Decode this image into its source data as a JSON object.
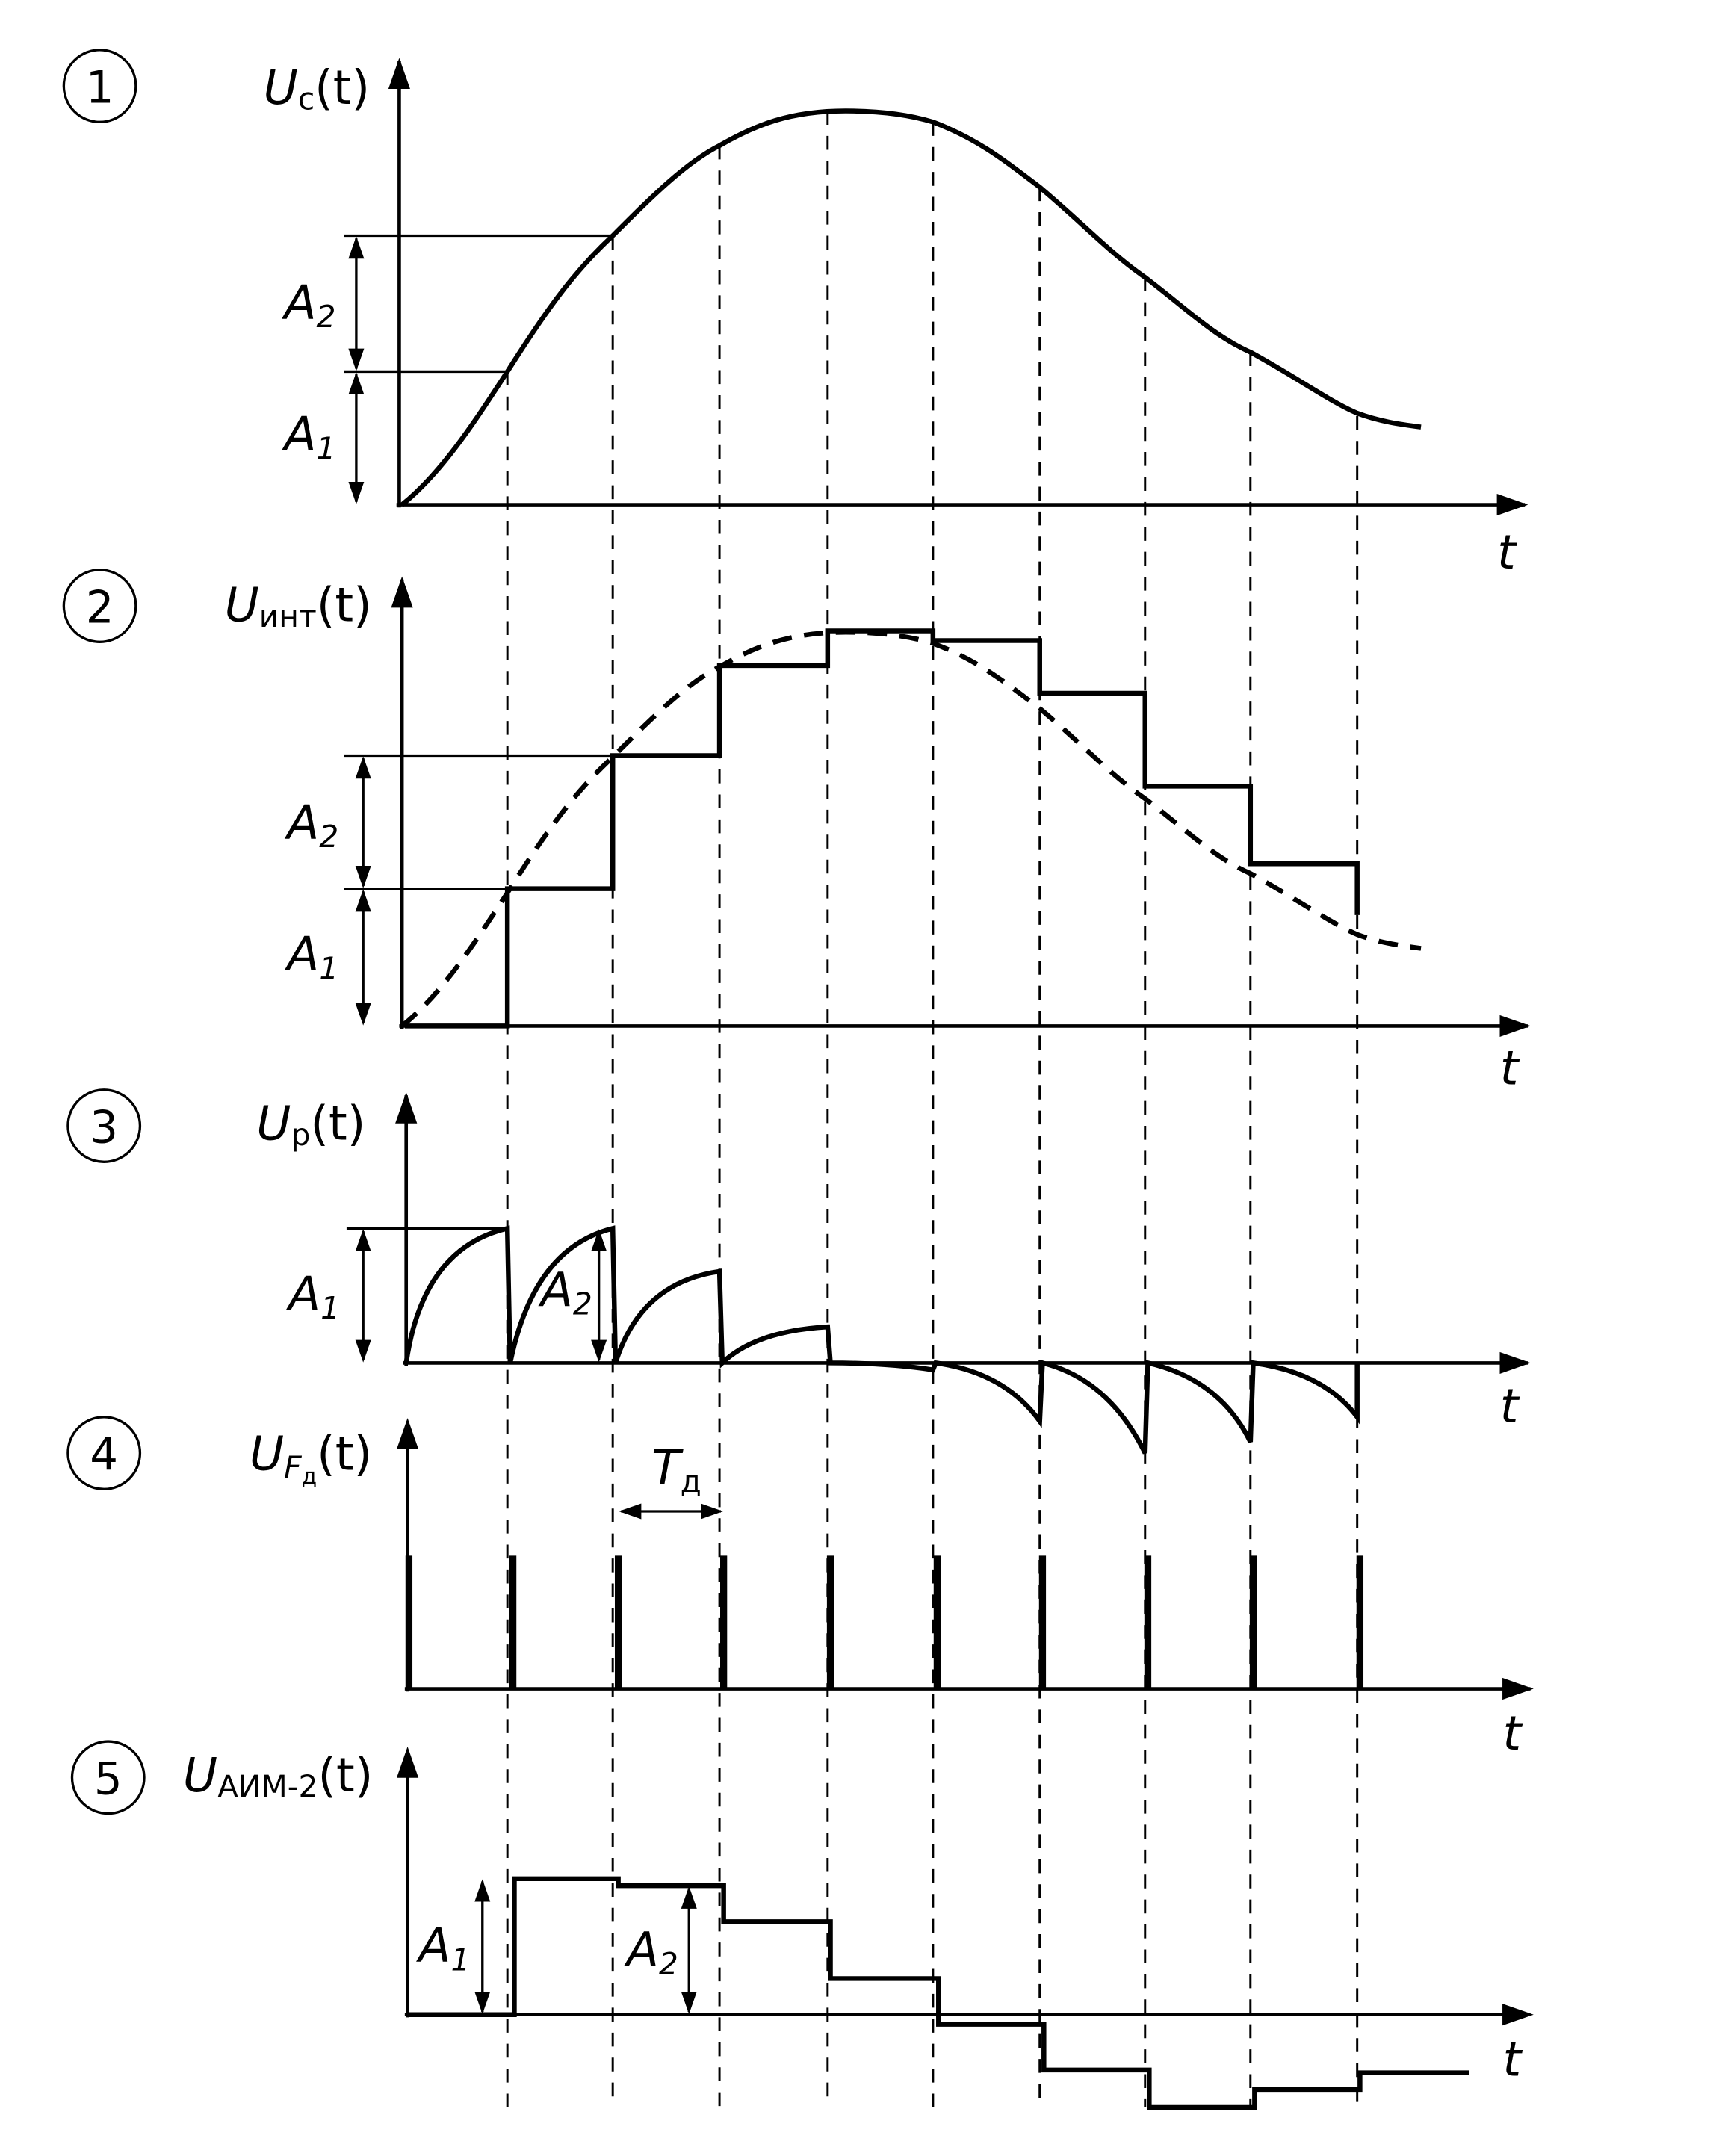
{
  "panels": [
    {
      "number": "1",
      "ylabel": {
        "main": "U",
        "sub": "c",
        "arg": "(t)"
      },
      "xlabel": "t",
      "levels": [
        {
          "main": "A",
          "sub": "2"
        },
        {
          "main": "A",
          "sub": "1"
        }
      ]
    },
    {
      "number": "2",
      "ylabel": {
        "main": "U",
        "sub": "инт",
        "arg": "(t)"
      },
      "xlabel": "t",
      "levels": [
        {
          "main": "A",
          "sub": "2"
        },
        {
          "main": "A",
          "sub": "1"
        }
      ]
    },
    {
      "number": "3",
      "ylabel": {
        "main": "U",
        "sub": "р",
        "arg": "(t)"
      },
      "xlabel": "t",
      "levels": [
        {
          "main": "A",
          "sub": "1"
        },
        {
          "main": "A",
          "sub": "2"
        }
      ]
    },
    {
      "number": "4",
      "ylabel": {
        "main": "U",
        "sub": "F",
        "subsub": "д",
        "arg": "(t)"
      },
      "xlabel": "t",
      "period": {
        "main": "T",
        "sub": "д"
      }
    },
    {
      "number": "5",
      "ylabel": {
        "main": "U",
        "sub": "АИМ-2",
        "arg": "(t)"
      },
      "xlabel": "t",
      "levels": [
        {
          "main": "A",
          "sub": "1"
        },
        {
          "main": "A",
          "sub": "2"
        }
      ]
    }
  ]
}
